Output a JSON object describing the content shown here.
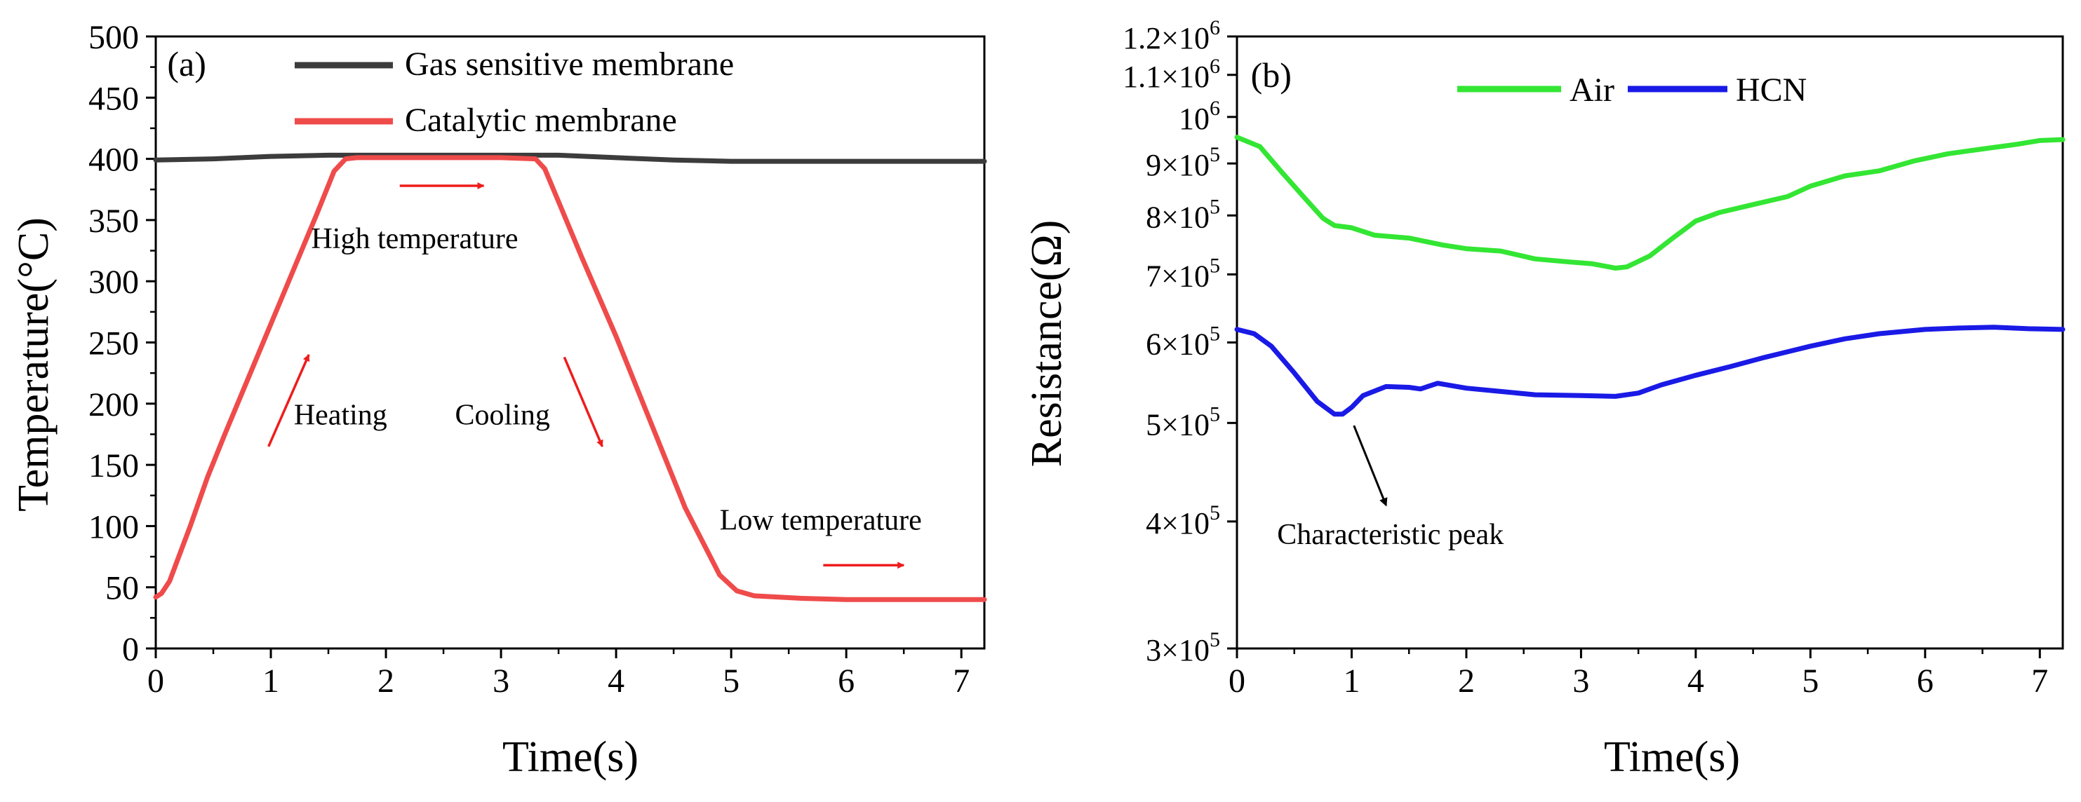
{
  "chart_data": [
    {
      "panel": "(a)",
      "type": "line",
      "xlabel": "Time(s)",
      "ylabel": "Temperature(°C)",
      "xlim": [
        0,
        7.2
      ],
      "ylim": [
        0,
        500
      ],
      "xticks": [
        "0",
        "1",
        "2",
        "3",
        "4",
        "5",
        "6",
        "7"
      ],
      "yticks": [
        "0",
        "50",
        "100",
        "150",
        "200",
        "250",
        "300",
        "350",
        "400",
        "450",
        "500"
      ],
      "legend_position": "top-center",
      "series": [
        {
          "name": "Gas sensitive membrane",
          "color": "#3c3c3c",
          "x": [
            0,
            0.5,
            1,
            1.5,
            2,
            2.5,
            3,
            3.5,
            4,
            4.5,
            5,
            5.5,
            6,
            6.5,
            7,
            7.2
          ],
          "y": [
            399,
            400,
            402,
            403,
            403,
            403,
            403,
            403,
            401,
            399,
            398,
            398,
            398,
            398,
            398,
            398
          ]
        },
        {
          "name": "Catalytic membrane",
          "color": "#ef4b4b",
          "x": [
            0,
            0.05,
            0.12,
            0.2,
            0.3,
            0.45,
            0.6,
            0.8,
            1.0,
            1.2,
            1.4,
            1.55,
            1.65,
            1.75,
            2.0,
            2.5,
            3.0,
            3.3,
            3.38,
            3.5,
            3.7,
            4.0,
            4.3,
            4.6,
            4.9,
            5.05,
            5.2,
            5.6,
            6.0,
            6.5,
            7.2
          ],
          "y": [
            42,
            45,
            55,
            75,
            100,
            140,
            175,
            220,
            265,
            310,
            355,
            390,
            400,
            401,
            401,
            401,
            401,
            400,
            392,
            365,
            320,
            255,
            185,
            115,
            60,
            47,
            43,
            41,
            40,
            40,
            40
          ]
        }
      ],
      "annotations": [
        {
          "text": "(a)",
          "x": 0.1,
          "y": 468
        },
        {
          "text": "High temperature",
          "x": 1.35,
          "y": 327
        },
        {
          "text": "Heating",
          "x": 1.2,
          "y": 183
        },
        {
          "text": "Cooling",
          "x": 2.6,
          "y": 183
        },
        {
          "text": "Low temperature",
          "x": 4.9,
          "y": 97
        }
      ],
      "arrows": [
        {
          "color": "#ef1c1c",
          "from": [
            2.12,
            378
          ],
          "to": [
            2.85,
            378
          ]
        },
        {
          "color": "#ef1c1c",
          "from": [
            0.98,
            165
          ],
          "to": [
            1.33,
            240
          ]
        },
        {
          "color": "#ef1c1c",
          "from": [
            3.55,
            238
          ],
          "to": [
            3.88,
            165
          ]
        },
        {
          "color": "#ef1c1c",
          "from": [
            5.8,
            68
          ],
          "to": [
            6.5,
            68
          ]
        }
      ]
    },
    {
      "panel": "(b)",
      "type": "line",
      "yscale": "log",
      "xlabel": "Time(s)",
      "ylabel": "Resistance(Ω)",
      "xlim": [
        0,
        7.2
      ],
      "ylim": [
        300000,
        1200000
      ],
      "xticks": [
        "0",
        "1",
        "2",
        "3",
        "4",
        "5",
        "6",
        "7"
      ],
      "yticks": [
        {
          "value": 300000,
          "mantissa": "3×10",
          "exp": "5"
        },
        {
          "value": 400000,
          "mantissa": "4×10",
          "exp": "5"
        },
        {
          "value": 500000,
          "mantissa": "5×10",
          "exp": "5"
        },
        {
          "value": 600000,
          "mantissa": "6×10",
          "exp": "5"
        },
        {
          "value": 700000,
          "mantissa": "7×10",
          "exp": "5"
        },
        {
          "value": 800000,
          "mantissa": "8×10",
          "exp": "5"
        },
        {
          "value": 900000,
          "mantissa": "9×10",
          "exp": "5"
        },
        {
          "value": 1000000,
          "mantissa": "10",
          "exp": "6"
        },
        {
          "value": 1100000,
          "mantissa": "1.1×10",
          "exp": "6"
        },
        {
          "value": 1200000,
          "mantissa": "1.2×10",
          "exp": "6"
        }
      ],
      "legend_position": "top-center",
      "series": [
        {
          "name": "Air",
          "color": "#33e633",
          "x": [
            0,
            0.2,
            0.4,
            0.6,
            0.75,
            0.85,
            1.0,
            1.2,
            1.5,
            1.8,
            2.0,
            2.3,
            2.6,
            2.9,
            3.1,
            3.3,
            3.4,
            3.6,
            3.8,
            4.0,
            4.2,
            4.5,
            4.8,
            5.0,
            5.3,
            5.6,
            5.9,
            6.2,
            6.5,
            6.8,
            7.0,
            7.2
          ],
          "y": [
            955000,
            935000,
            880000,
            830000,
            795000,
            782000,
            778000,
            765000,
            760000,
            748000,
            742000,
            738000,
            725000,
            720000,
            717000,
            710000,
            712000,
            730000,
            760000,
            790000,
            805000,
            820000,
            835000,
            855000,
            875000,
            885000,
            905000,
            920000,
            930000,
            940000,
            948000,
            950000
          ]
        },
        {
          "name": "HCN",
          "color": "#1a1ae6",
          "x": [
            0,
            0.15,
            0.3,
            0.5,
            0.7,
            0.85,
            0.92,
            1.0,
            1.1,
            1.3,
            1.5,
            1.6,
            1.75,
            2.0,
            2.3,
            2.6,
            3.0,
            3.3,
            3.5,
            3.7,
            4.0,
            4.3,
            4.6,
            5.0,
            5.3,
            5.6,
            6.0,
            6.3,
            6.6,
            6.9,
            7.2
          ],
          "y": [
            618000,
            612000,
            595000,
            560000,
            525000,
            510000,
            510000,
            518000,
            532000,
            543000,
            542000,
            540000,
            547000,
            541000,
            537000,
            533000,
            532000,
            531000,
            535000,
            545000,
            557000,
            568000,
            580000,
            595000,
            605000,
            612000,
            618000,
            620000,
            621000,
            619000,
            618000
          ]
        }
      ],
      "annotations": [
        {
          "text": "(b)",
          "x": 0.12,
          "y": 1070000
        },
        {
          "text": "Characteristic peak",
          "x": 0.35,
          "y": 380000
        }
      ],
      "arrows": [
        {
          "color": "#000000",
          "from": [
            1.02,
            497000
          ],
          "to": [
            1.3,
            415000
          ]
        }
      ]
    }
  ]
}
